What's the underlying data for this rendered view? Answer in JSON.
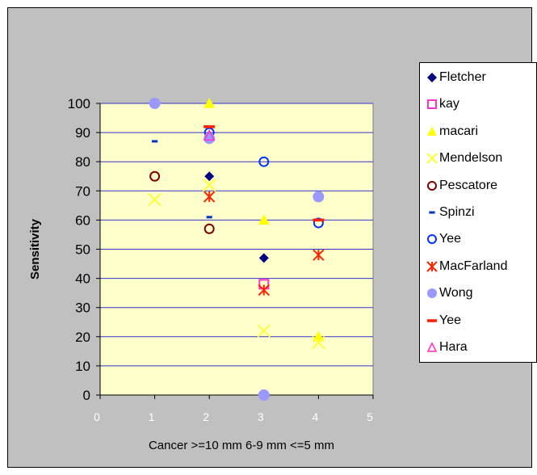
{
  "chart_data": {
    "type": "scatter",
    "title": "",
    "xlabel": "Cancer  >=10 mm  6-9 mm  <=5 mm",
    "ylabel": "Sensitivity",
    "xlim": [
      0,
      5
    ],
    "ylim": [
      0,
      100
    ],
    "x_ticks": [
      "0",
      "1",
      "2",
      "3",
      "4",
      "5"
    ],
    "y_ticks": [
      "0",
      "10",
      "20",
      "30",
      "40",
      "50",
      "60",
      "70",
      "80",
      "90",
      "100"
    ],
    "grid": "horizontal",
    "plot_background": "#ffffcc",
    "legend_position": "right",
    "series": [
      {
        "name": "Fletcher",
        "marker": "diamond-filled",
        "color": "#000080",
        "points": [
          [
            2,
            75
          ],
          [
            3,
            47
          ]
        ]
      },
      {
        "name": "kay",
        "marker": "square-open",
        "color": "#ff33cc",
        "points": [
          [
            3,
            38
          ]
        ]
      },
      {
        "name": "macari",
        "marker": "triangle-filled",
        "color": "#ffff00",
        "points": [
          [
            2,
            100
          ],
          [
            3,
            60
          ],
          [
            4,
            20
          ]
        ]
      },
      {
        "name": "Mendelson",
        "marker": "x",
        "color": "#ffff33",
        "points": [
          [
            1,
            67
          ],
          [
            2,
            72
          ],
          [
            3,
            22
          ],
          [
            4,
            18
          ]
        ]
      },
      {
        "name": "Pescatore",
        "marker": "circle-open",
        "color": "#800000",
        "points": [
          [
            1,
            75
          ],
          [
            2,
            57
          ]
        ]
      },
      {
        "name": "Spinzi",
        "marker": "dash",
        "color": "#0033cc",
        "points": [
          [
            1,
            87
          ],
          [
            2,
            61
          ]
        ]
      },
      {
        "name": "Yee",
        "marker": "circle-open",
        "color": "#0033ff",
        "points": [
          [
            2,
            90
          ],
          [
            3,
            80
          ],
          [
            4,
            59
          ]
        ]
      },
      {
        "name": "MacFarland",
        "marker": "asterisk",
        "color": "#ff2200",
        "points": [
          [
            2,
            68
          ],
          [
            3,
            36
          ],
          [
            4,
            48
          ]
        ]
      },
      {
        "name": "Wong",
        "marker": "circle-filled",
        "color": "#9999ff",
        "points": [
          [
            1,
            100
          ],
          [
            2,
            88
          ],
          [
            3,
            0
          ],
          [
            4,
            68
          ]
        ]
      },
      {
        "name": "Yee",
        "marker": "line",
        "color": "#ff2200",
        "points": [
          [
            2,
            92
          ],
          [
            4,
            60
          ]
        ]
      },
      {
        "name": "Hara",
        "marker": "triangle-open",
        "color": "#ff33cc",
        "points": [
          [
            2,
            89
          ]
        ]
      }
    ]
  }
}
